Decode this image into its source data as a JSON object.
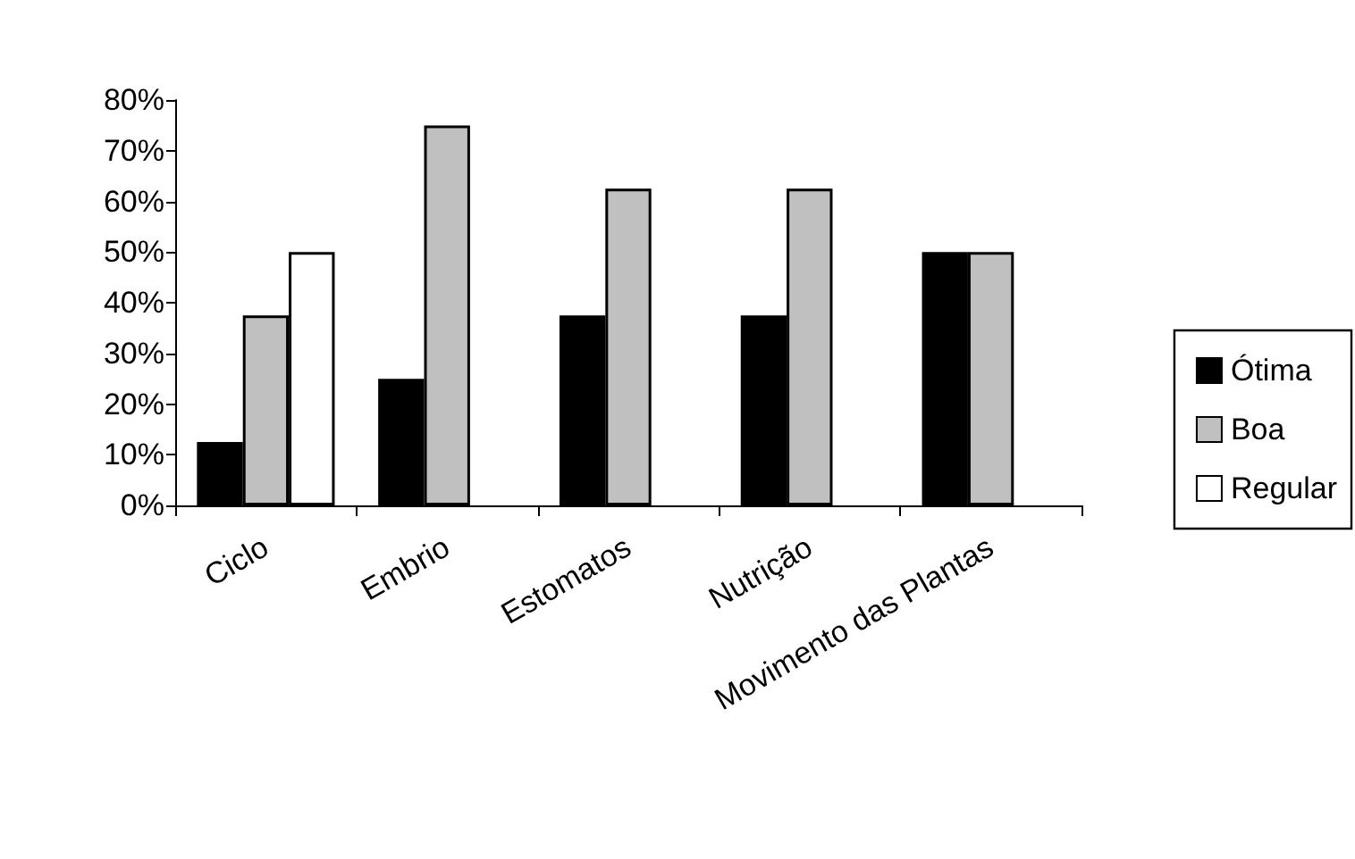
{
  "chart_data": {
    "type": "bar",
    "categories": [
      "Ciclo",
      "Embrio",
      "Estomatos",
      "Nutrição",
      "Movimento das Plantas"
    ],
    "series": [
      {
        "name": "Ótima",
        "color": "#000000",
        "values": [
          12.5,
          25,
          37.5,
          37.5,
          50
        ]
      },
      {
        "name": "Boa",
        "color": "#c0c0c0",
        "values": [
          37.5,
          75,
          62.5,
          62.5,
          50
        ]
      },
      {
        "name": "Regular",
        "color": "#ffffff",
        "values": [
          50,
          null,
          null,
          null,
          null
        ]
      }
    ],
    "ylim": [
      0,
      80
    ],
    "yticks": [
      {
        "value": 0,
        "label": "0%"
      },
      {
        "value": 10,
        "label": "10%"
      },
      {
        "value": 20,
        "label": "20%"
      },
      {
        "value": 30,
        "label": "30%"
      },
      {
        "value": 40,
        "label": "40%"
      },
      {
        "value": 50,
        "label": "50%"
      },
      {
        "value": 60,
        "label": "60%"
      },
      {
        "value": 70,
        "label": "70%"
      },
      {
        "value": 80,
        "label": "80%"
      }
    ],
    "grid": false,
    "legend": "right"
  }
}
